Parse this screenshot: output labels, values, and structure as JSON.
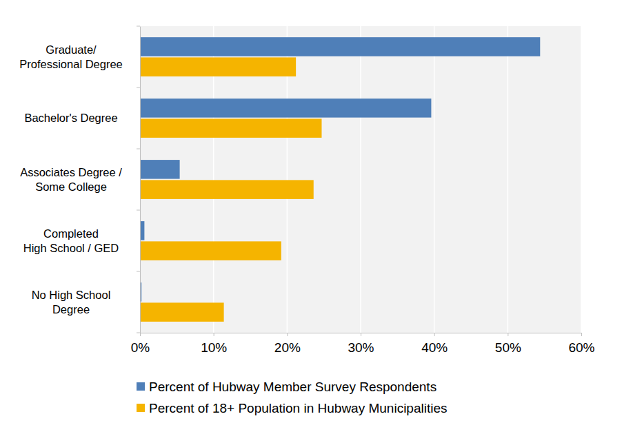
{
  "chart_data": {
    "type": "bar",
    "orientation": "horizontal",
    "categories": [
      "Graduate/\nProfessional Degree",
      "Bachelor's Degree",
      "Associates Degree /\nSome College",
      "Completed\nHigh School / GED",
      "No High School\nDegree"
    ],
    "series": [
      {
        "name": "Percent of Hubway Member Survey Respondents",
        "color": "#4f7fb8",
        "values": [
          54.4,
          39.6,
          5.4,
          0.6,
          0.2
        ]
      },
      {
        "name": "Percent of 18+ Population in Hubway Municipalities",
        "color": "#f5b400",
        "values": [
          21.2,
          24.7,
          23.6,
          19.2,
          11.4
        ]
      }
    ],
    "xlim": [
      0,
      60
    ],
    "xticks": [
      {
        "value": 0,
        "label": "0%"
      },
      {
        "value": 10,
        "label": "10%"
      },
      {
        "value": 20,
        "label": "20%"
      },
      {
        "value": 30,
        "label": "30%"
      },
      {
        "value": 40,
        "label": "40%"
      },
      {
        "value": 50,
        "label": "50%"
      },
      {
        "value": 60,
        "label": "60%"
      }
    ],
    "grid": true,
    "legend": "bottom"
  }
}
